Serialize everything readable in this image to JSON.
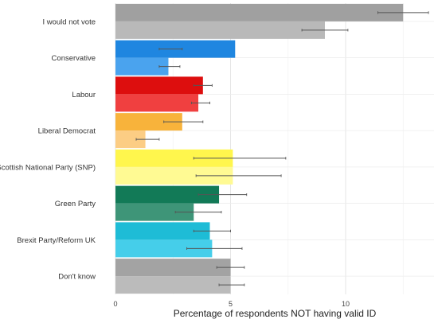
{
  "chart_data": {
    "type": "bar",
    "orientation": "horizontal",
    "grouped": true,
    "categories": [
      "I would not vote",
      "Conservative",
      "Labour",
      "Liberal Democrat",
      "Scottish National Party (SNP)",
      "Green Party",
      "Brexit Party/Reform UK",
      "Don't know"
    ],
    "colors": [
      "#a0a0a0",
      "#1f86e0",
      "#dd0e0e",
      "#f8b33b",
      "#fff64d",
      "#127a57",
      "#1ebcd6",
      "#a3a3a3"
    ],
    "light_colors": [
      "#b9b9b9",
      "#4aa3ee",
      "#f04040",
      "#fccd84",
      "#fffa93",
      "#3e9578",
      "#45ceea",
      "#bbbbbb"
    ],
    "series": [
      {
        "values": [
          12.5,
          5.2,
          3.8,
          2.9,
          5.1,
          4.5,
          4.1,
          5.0
        ],
        "error_low": [
          11.4,
          1.9,
          3.4,
          2.1,
          3.4,
          3.6,
          3.4,
          4.4
        ],
        "error_high": [
          13.6,
          2.9,
          4.2,
          3.8,
          7.4,
          5.7,
          5.0,
          5.6
        ]
      },
      {
        "values": [
          9.1,
          2.3,
          3.6,
          1.3,
          5.1,
          3.4,
          4.2,
          5.0
        ],
        "error_low": [
          8.1,
          1.9,
          3.3,
          0.9,
          3.5,
          2.6,
          3.1,
          4.5
        ],
        "error_high": [
          10.1,
          2.8,
          4.1,
          1.9,
          7.2,
          4.6,
          5.5,
          5.6
        ]
      }
    ],
    "xlabel": "Percentage of respondents NOT having valid ID",
    "ylabel": "",
    "xlim": [
      0,
      13.9
    ],
    "xticks": [
      0,
      5,
      10
    ],
    "grid": true,
    "legend": "none"
  }
}
